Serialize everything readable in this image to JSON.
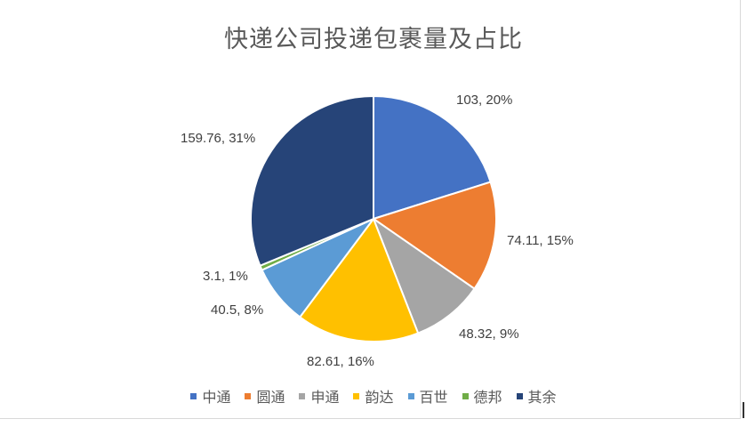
{
  "chart_data": {
    "type": "pie",
    "title": "快递公司投递包裹量及占比",
    "categories": [
      "中通",
      "圆通",
      "申通",
      "韵达",
      "百世",
      "德邦",
      "其余"
    ],
    "values": [
      103,
      74.11,
      48.32,
      82.61,
      40.5,
      3.1,
      159.76
    ],
    "percentages": [
      "20%",
      "15%",
      "9%",
      "16%",
      "8%",
      "1%",
      "31%"
    ],
    "data_labels": [
      "103, 20%",
      "74.11, 15%",
      "48.32, 9%",
      "82.61, 16%",
      "40.5, 8%",
      "3.1, 1%",
      "159.76, 31%"
    ],
    "colors": [
      "#4472c4",
      "#ed7d31",
      "#a5a5a5",
      "#ffc000",
      "#5b9bd5",
      "#70ad47",
      "#264478"
    ],
    "legend_position": "bottom"
  }
}
